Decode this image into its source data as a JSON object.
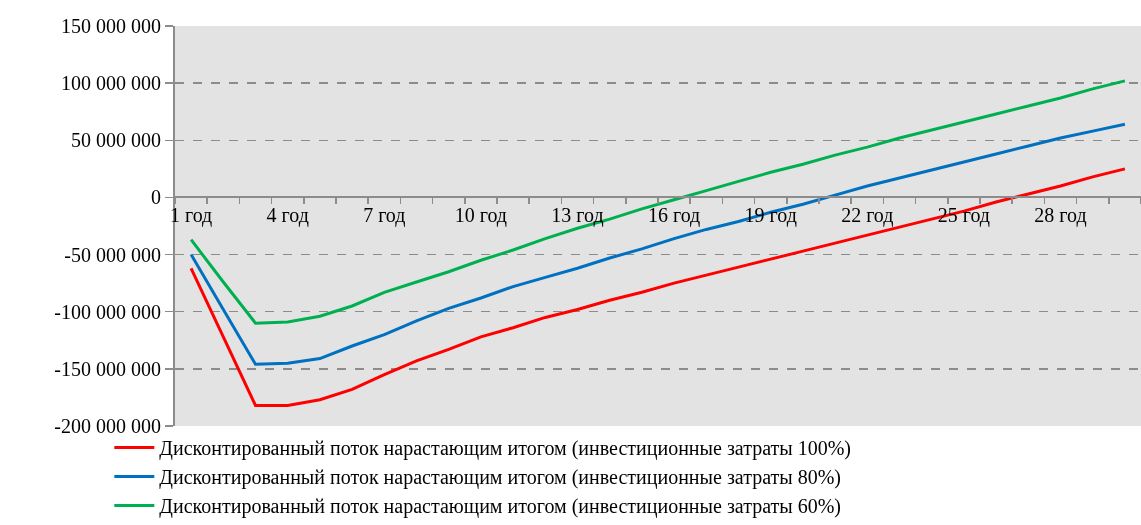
{
  "chart_data": {
    "type": "line",
    "categories": [
      "1 год",
      null,
      null,
      "4 год",
      null,
      null,
      "7 год",
      null,
      null,
      "10 год",
      null,
      null,
      "13 год",
      null,
      null,
      "16 год",
      null,
      null,
      "19 год",
      null,
      null,
      "22 год",
      null,
      null,
      "25 год",
      null,
      null,
      "28 год",
      null,
      null
    ],
    "series": [
      {
        "name": "Дисконтированный поток нарастающим итогом (инвестиционные затраты 100%)",
        "color": "#ff0000",
        "values": [
          -62000000,
          -122000000,
          -182000000,
          -182000000,
          -177000000,
          -168000000,
          -155000000,
          -143000000,
          -133000000,
          -122000000,
          -114000000,
          -105000000,
          -98000000,
          -90000000,
          -83000000,
          -75000000,
          -68000000,
          -61000000,
          -54000000,
          -47000000,
          -40000000,
          -33000000,
          -26000000,
          -19000000,
          -12000000,
          -4000000,
          3000000,
          10000000,
          18000000,
          25000000
        ]
      },
      {
        "name": "Дисконтированный поток нарастающим итогом (инвестиционные затраты 80%)",
        "color": "#0070c0",
        "values": [
          -50000000,
          -98000000,
          -146000000,
          -145000000,
          -141000000,
          -130000000,
          -120000000,
          -108000000,
          -97000000,
          -88000000,
          -78000000,
          -70000000,
          -62000000,
          -53000000,
          -45000000,
          -36000000,
          -28000000,
          -21000000,
          -13000000,
          -6000000,
          2000000,
          10000000,
          17000000,
          24000000,
          31000000,
          38000000,
          45000000,
          52000000,
          58000000,
          64000000
        ]
      },
      {
        "name": "Дисконтированный поток нарастающим итогом (инвестиционные затраты 60%)",
        "color": "#00b050",
        "values": [
          -37000000,
          -74000000,
          -110000000,
          -109000000,
          -104000000,
          -95000000,
          -83000000,
          -74000000,
          -65000000,
          -55000000,
          -46000000,
          -36000000,
          -27000000,
          -19000000,
          -10000000,
          -2000000,
          6000000,
          14000000,
          22000000,
          29000000,
          37000000,
          44000000,
          52000000,
          59000000,
          66000000,
          73000000,
          80000000,
          87000000,
          95000000,
          102000000
        ]
      }
    ],
    "ylim": [
      -200000000,
      150000000
    ],
    "yticks": [
      {
        "value": -200000000,
        "label": "-200 000 000"
      },
      {
        "value": -150000000,
        "label": "-150 000 000"
      },
      {
        "value": -100000000,
        "label": "-100 000 000"
      },
      {
        "value": -50000000,
        "label": "-50 000 000"
      },
      {
        "value": 0,
        "label": "0"
      },
      {
        "value": 50000000,
        "label": "50 000 000"
      },
      {
        "value": 100000000,
        "label": "100 000 000"
      },
      {
        "value": 150000000,
        "label": "150 000 000"
      }
    ],
    "grid": "y",
    "legend": "bottom"
  }
}
